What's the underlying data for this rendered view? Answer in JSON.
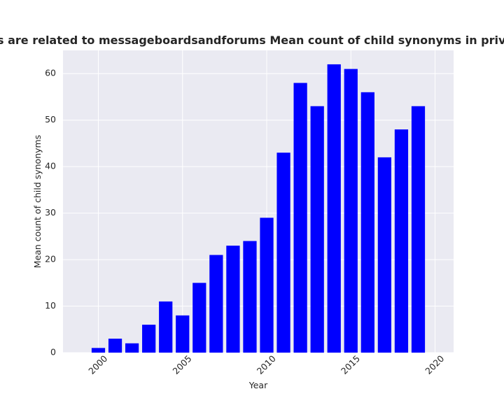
{
  "chart_data": {
    "type": "bar",
    "title": "categories are related to messageboardsandforums Mean count of child synonyms in privacy policies",
    "xlabel": "Year",
    "ylabel": "Mean count of child synonyms",
    "x": [
      2000,
      2001,
      2002,
      2003,
      2004,
      2005,
      2006,
      2007,
      2008,
      2009,
      2010,
      2011,
      2012,
      2013,
      2014,
      2015,
      2016,
      2017,
      2018,
      2019
    ],
    "values": [
      1,
      3,
      2,
      6,
      11,
      8,
      15,
      21,
      23,
      24,
      29,
      43,
      58,
      53,
      62,
      61,
      56,
      42,
      48,
      53
    ],
    "xlim": [
      1997.9,
      2021.1
    ],
    "ylim": [
      0,
      65
    ],
    "xticks": [
      2000,
      2005,
      2010,
      2015,
      2020
    ],
    "yticks": [
      0,
      10,
      20,
      30,
      40,
      50,
      60
    ],
    "bar_color": "#0000ff",
    "plot_background": "#eaeaf2",
    "grid": true,
    "legend": "none"
  }
}
